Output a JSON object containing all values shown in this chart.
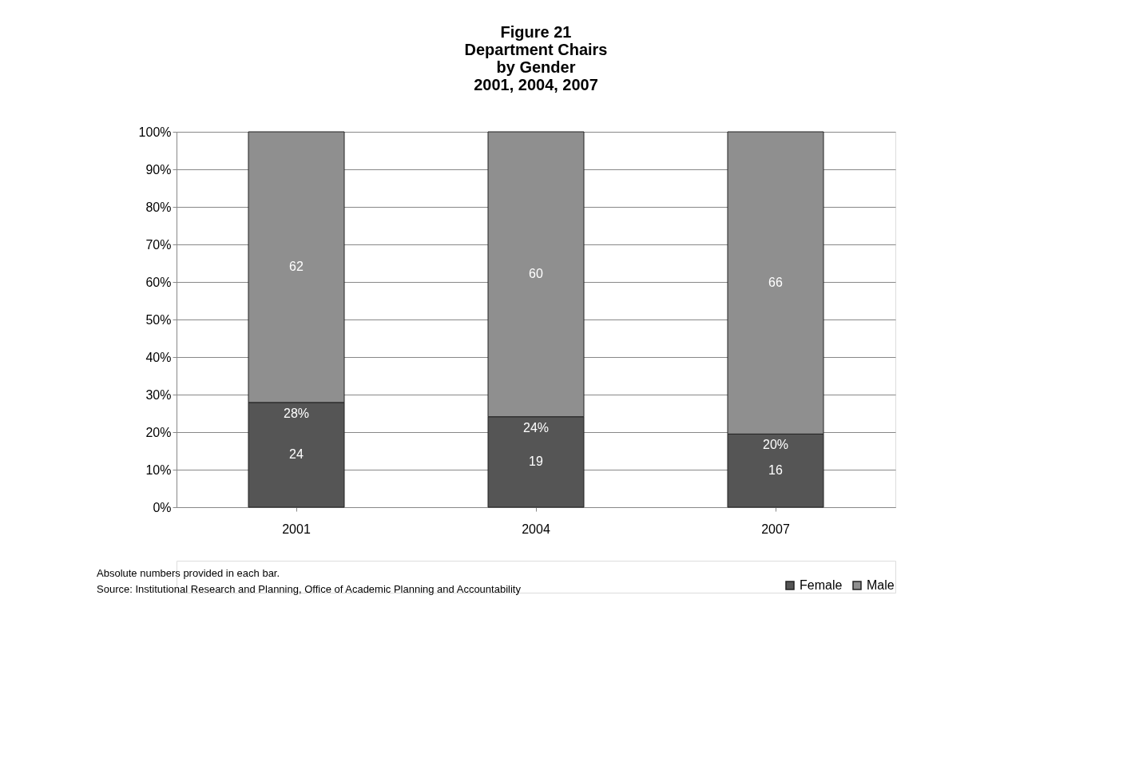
{
  "chart_data": {
    "type": "bar",
    "title": [
      "Figure 21",
      "Department Chairs",
      "by Gender",
      "2001, 2004, 2007"
    ],
    "categories": [
      "2001",
      "2004",
      "2007"
    ],
    "stacked": true,
    "series": [
      {
        "name": "Female",
        "color": "#555555",
        "values": [
          27.9,
          24.1,
          19.5
        ]
      },
      {
        "name": "Male",
        "color": "#8f8f8f",
        "values": [
          72.1,
          75.9,
          80.5
        ]
      }
    ],
    "ylim": [
      0,
      100
    ],
    "yticks": [
      {
        "value": 0,
        "label": "0%"
      },
      {
        "value": 10,
        "label": "10%"
      },
      {
        "value": 20,
        "label": "20%"
      },
      {
        "value": 30,
        "label": "30%"
      },
      {
        "value": 40,
        "label": "40%"
      },
      {
        "value": 50,
        "label": "50%"
      },
      {
        "value": 60,
        "label": "60%"
      },
      {
        "value": 70,
        "label": "70%"
      },
      {
        "value": 80,
        "label": "80%"
      },
      {
        "value": 90,
        "label": "90%"
      },
      {
        "value": 100,
        "label": "100%"
      }
    ],
    "grid": "y",
    "legend": "bottom right",
    "annotations": [
      {
        "text": "28%",
        "x": "2001",
        "y": 27.9
      },
      {
        "text": "24%",
        "x": "2004",
        "y": 24.1
      },
      {
        "text": "20%",
        "x": "2007",
        "y": 19.5
      },
      "24",
      "19",
      "16",
      "62",
      "60",
      "66",
      "Absolute numbers provided in each bar.",
      "Source: Institutional Research and Planning, Office of Academic Planning and Accountability"
    ]
  }
}
